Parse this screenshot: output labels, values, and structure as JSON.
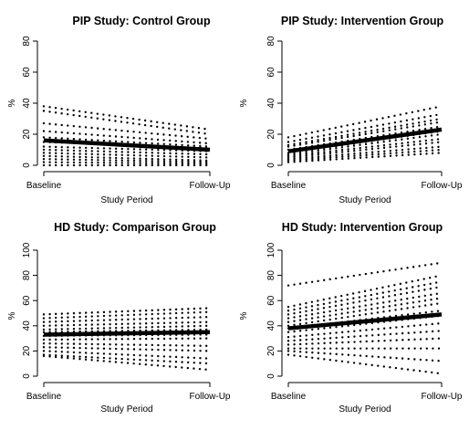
{
  "chart_data": [
    {
      "type": "line",
      "title": "PIP Study: Control Group",
      "xlabel": "Study Period",
      "ylabel": "%",
      "x_ticks": [
        "Baseline",
        "Follow-Up"
      ],
      "ylim": [
        0,
        80
      ],
      "y_ticks": [
        0,
        20,
        40,
        60,
        80
      ],
      "grid": false,
      "series": [
        {
          "style": "dotted",
          "values": [
            38,
            23
          ]
        },
        {
          "style": "dotted",
          "values": [
            35,
            20
          ]
        },
        {
          "style": "dotted",
          "values": [
            27,
            17
          ]
        },
        {
          "style": "dotted",
          "values": [
            22,
            14
          ]
        },
        {
          "style": "dotted",
          "values": [
            18,
            12
          ]
        },
        {
          "style": "dotted",
          "values": [
            15,
            11
          ]
        },
        {
          "style": "dotted",
          "values": [
            12,
            9
          ]
        },
        {
          "style": "dotted",
          "values": [
            10,
            7
          ]
        },
        {
          "style": "dotted",
          "values": [
            8,
            5
          ]
        },
        {
          "style": "dotted",
          "values": [
            6,
            3
          ]
        },
        {
          "style": "dotted",
          "values": [
            4,
            2
          ]
        },
        {
          "style": "dotted",
          "values": [
            2,
            1
          ]
        },
        {
          "style": "dotted",
          "values": [
            0,
            0
          ]
        },
        {
          "style": "bold",
          "values": [
            16,
            10
          ]
        }
      ]
    },
    {
      "type": "line",
      "title": "PIP Study: Intervention Group",
      "xlabel": "Study Period",
      "ylabel": "%",
      "x_ticks": [
        "Baseline",
        "Follow-Up"
      ],
      "ylim": [
        0,
        80
      ],
      "y_ticks": [
        0,
        20,
        40,
        60,
        80
      ],
      "grid": false,
      "series": [
        {
          "style": "dotted",
          "values": [
            18,
            38
          ]
        },
        {
          "style": "dotted",
          "values": [
            15,
            33
          ]
        },
        {
          "style": "dotted",
          "values": [
            13,
            30
          ]
        },
        {
          "style": "dotted",
          "values": [
            12,
            28
          ]
        },
        {
          "style": "dotted",
          "values": [
            10,
            25
          ]
        },
        {
          "style": "dotted",
          "values": [
            8,
            22
          ]
        },
        {
          "style": "dotted",
          "values": [
            7,
            20
          ]
        },
        {
          "style": "dotted",
          "values": [
            6,
            17
          ]
        },
        {
          "style": "dotted",
          "values": [
            5,
            15
          ]
        },
        {
          "style": "dotted",
          "values": [
            4,
            12
          ]
        },
        {
          "style": "dotted",
          "values": [
            3,
            10
          ]
        },
        {
          "style": "dotted",
          "values": [
            2,
            8
          ]
        },
        {
          "style": "bold",
          "values": [
            9,
            23
          ]
        }
      ]
    },
    {
      "type": "line",
      "title": "HD Study: Comparison Group",
      "xlabel": "Study Period",
      "ylabel": "%",
      "x_ticks": [
        "Baseline",
        "Follow-Up"
      ],
      "ylim": [
        0,
        100
      ],
      "y_ticks": [
        0,
        20,
        40,
        60,
        80,
        100
      ],
      "grid": false,
      "series": [
        {
          "style": "dotted",
          "values": [
            49,
            54
          ]
        },
        {
          "style": "dotted",
          "values": [
            46,
            51
          ]
        },
        {
          "style": "dotted",
          "values": [
            43,
            47
          ]
        },
        {
          "style": "dotted",
          "values": [
            40,
            43
          ]
        },
        {
          "style": "dotted",
          "values": [
            37,
            40
          ]
        },
        {
          "style": "dotted",
          "values": [
            35,
            37
          ]
        },
        {
          "style": "dotted",
          "values": [
            32,
            33
          ]
        },
        {
          "style": "dotted",
          "values": [
            29,
            30
          ]
        },
        {
          "style": "dotted",
          "values": [
            26,
            24
          ]
        },
        {
          "style": "dotted",
          "values": [
            23,
            20
          ]
        },
        {
          "style": "dotted",
          "values": [
            20,
            14
          ]
        },
        {
          "style": "dotted",
          "values": [
            17,
            10
          ]
        },
        {
          "style": "dotted",
          "values": [
            16,
            5
          ]
        },
        {
          "style": "bold",
          "values": [
            33,
            35
          ]
        }
      ]
    },
    {
      "type": "line",
      "title": "HD Study: Intervention Group",
      "xlabel": "Study Period",
      "ylabel": "%",
      "x_ticks": [
        "Baseline",
        "Follow-Up"
      ],
      "ylim": [
        0,
        100
      ],
      "y_ticks": [
        0,
        20,
        40,
        60,
        80,
        100
      ],
      "grid": false,
      "series": [
        {
          "style": "dotted",
          "values": [
            72,
            90
          ]
        },
        {
          "style": "dotted",
          "values": [
            55,
            80
          ]
        },
        {
          "style": "dotted",
          "values": [
            52,
            75
          ]
        },
        {
          "style": "dotted",
          "values": [
            49,
            71
          ]
        },
        {
          "style": "dotted",
          "values": [
            46,
            66
          ]
        },
        {
          "style": "dotted",
          "values": [
            43,
            62
          ]
        },
        {
          "style": "dotted",
          "values": [
            40,
            58
          ]
        },
        {
          "style": "dotted",
          "values": [
            38,
            52
          ]
        },
        {
          "style": "dotted",
          "values": [
            35,
            48
          ]
        },
        {
          "style": "dotted",
          "values": [
            31,
            42
          ]
        },
        {
          "style": "dotted",
          "values": [
            28,
            36
          ]
        },
        {
          "style": "dotted",
          "values": [
            25,
            30
          ]
        },
        {
          "style": "dotted",
          "values": [
            22,
            22
          ]
        },
        {
          "style": "dotted",
          "values": [
            20,
            12
          ]
        },
        {
          "style": "dotted",
          "values": [
            17,
            2
          ]
        },
        {
          "style": "bold",
          "values": [
            38,
            49
          ]
        }
      ]
    }
  ]
}
